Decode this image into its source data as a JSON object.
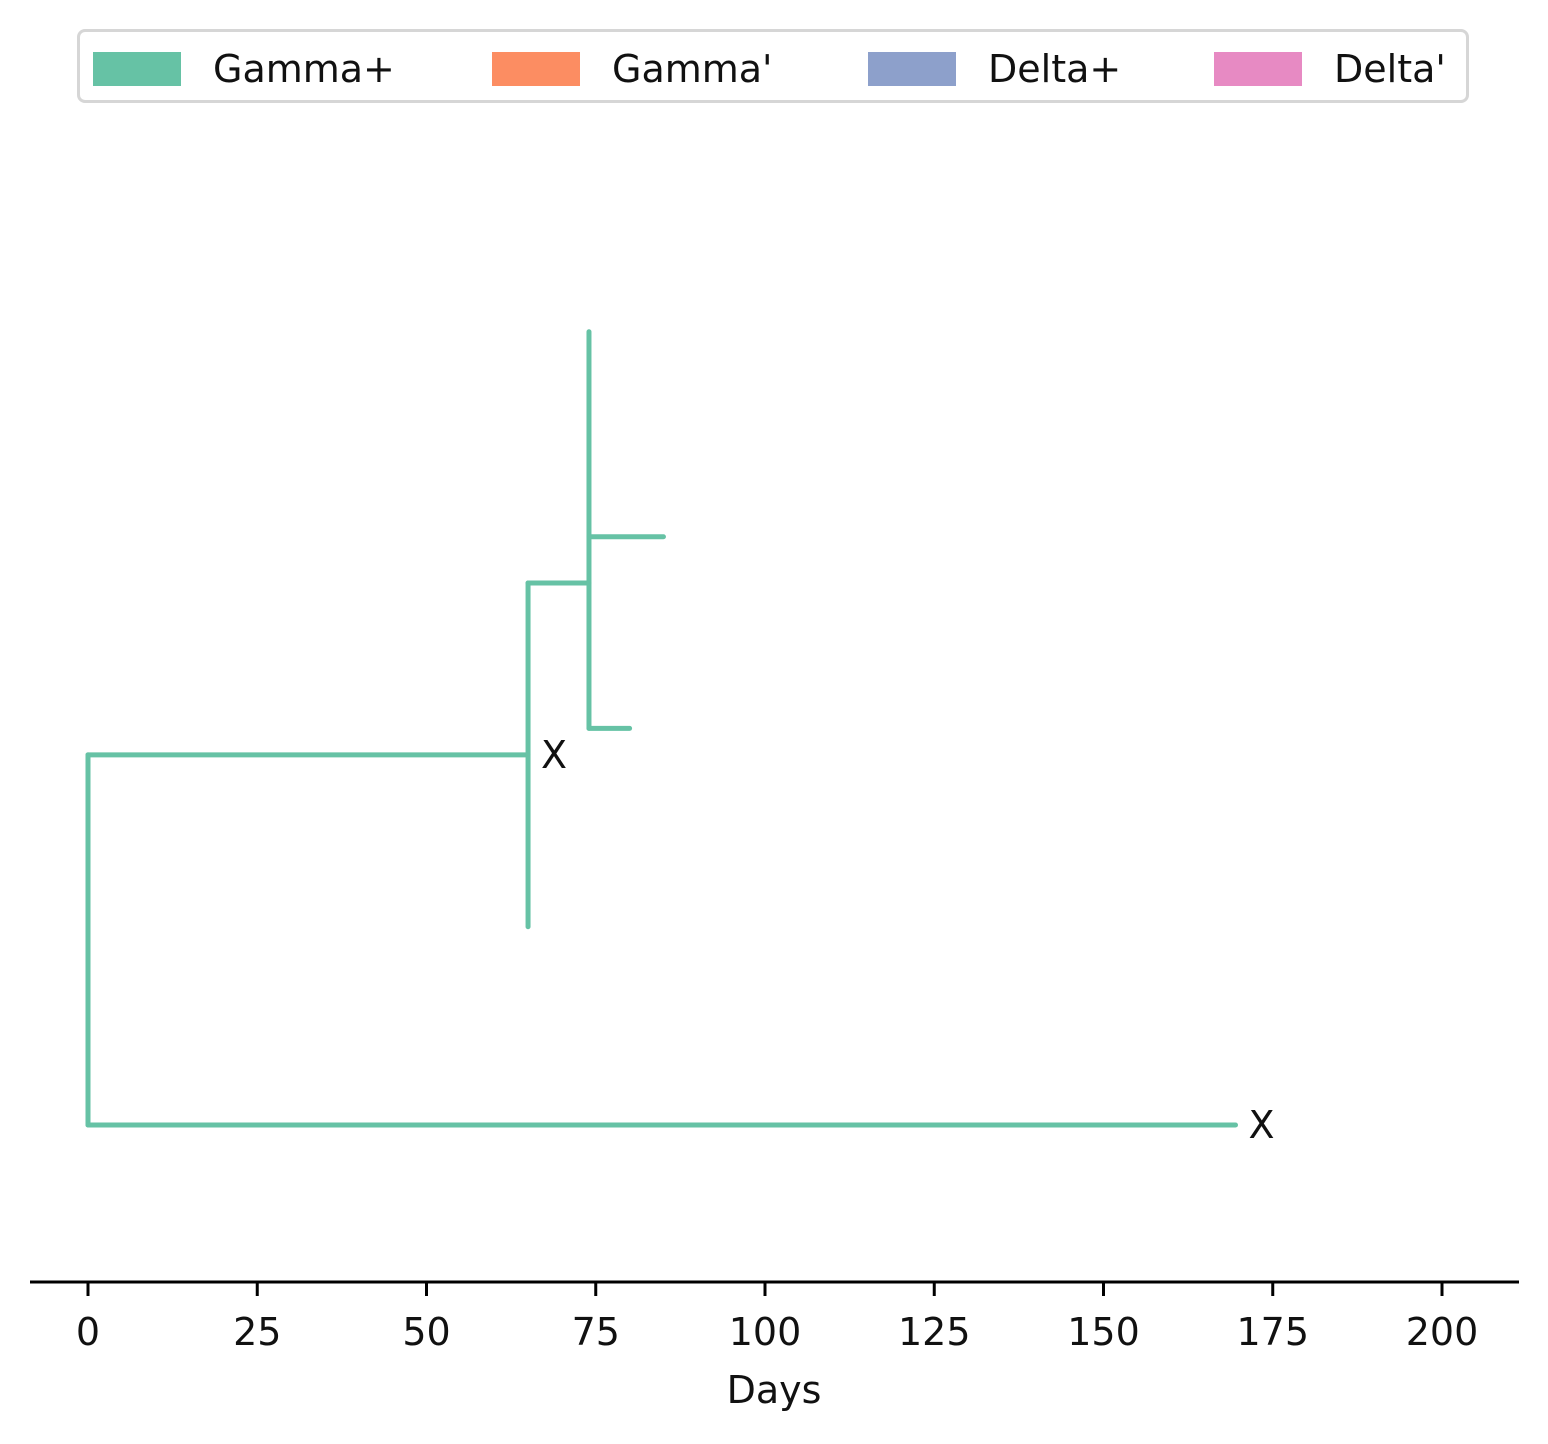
{
  "chart_data": {
    "type": "tree",
    "xlabel": "Days",
    "xlim": [
      -8.5,
      211.5
    ],
    "xticks": [
      0,
      25,
      50,
      75,
      100,
      125,
      150,
      175,
      200
    ],
    "legend": {
      "placement": "top",
      "entries": [
        {
          "label": "Gamma+",
          "color": "#66c2a5"
        },
        {
          "label": "Gamma'",
          "color": "#fc8d62"
        },
        {
          "label": "Delta+",
          "color": "#8da0cb"
        },
        {
          "label": "Delta'",
          "color": "#e78ac3"
        }
      ]
    },
    "line_color": "#66c2a5",
    "segments": [
      {
        "x": [
          0,
          0
        ],
        "y": [
          2.0,
          7.6
        ]
      },
      {
        "x": [
          0,
          65
        ],
        "y": [
          7.6,
          7.6
        ]
      },
      {
        "x": [
          0,
          169.5
        ],
        "y": [
          2.0,
          2.0
        ]
      },
      {
        "x": [
          65,
          65
        ],
        "y": [
          5.0,
          10.2
        ]
      },
      {
        "x": [
          65,
          74
        ],
        "y": [
          10.2,
          10.2
        ]
      },
      {
        "x": [
          74,
          74
        ],
        "y": [
          8.0,
          14.0
        ]
      },
      {
        "x": [
          74,
          85
        ],
        "y": [
          10.9,
          10.9
        ]
      },
      {
        "x": [
          74,
          80
        ],
        "y": [
          8.0,
          8.0
        ]
      }
    ],
    "markers": [
      {
        "label": "X",
        "x": 65,
        "y": 7.6
      },
      {
        "label": "X",
        "x": 169.5,
        "y": 2.0
      }
    ]
  }
}
